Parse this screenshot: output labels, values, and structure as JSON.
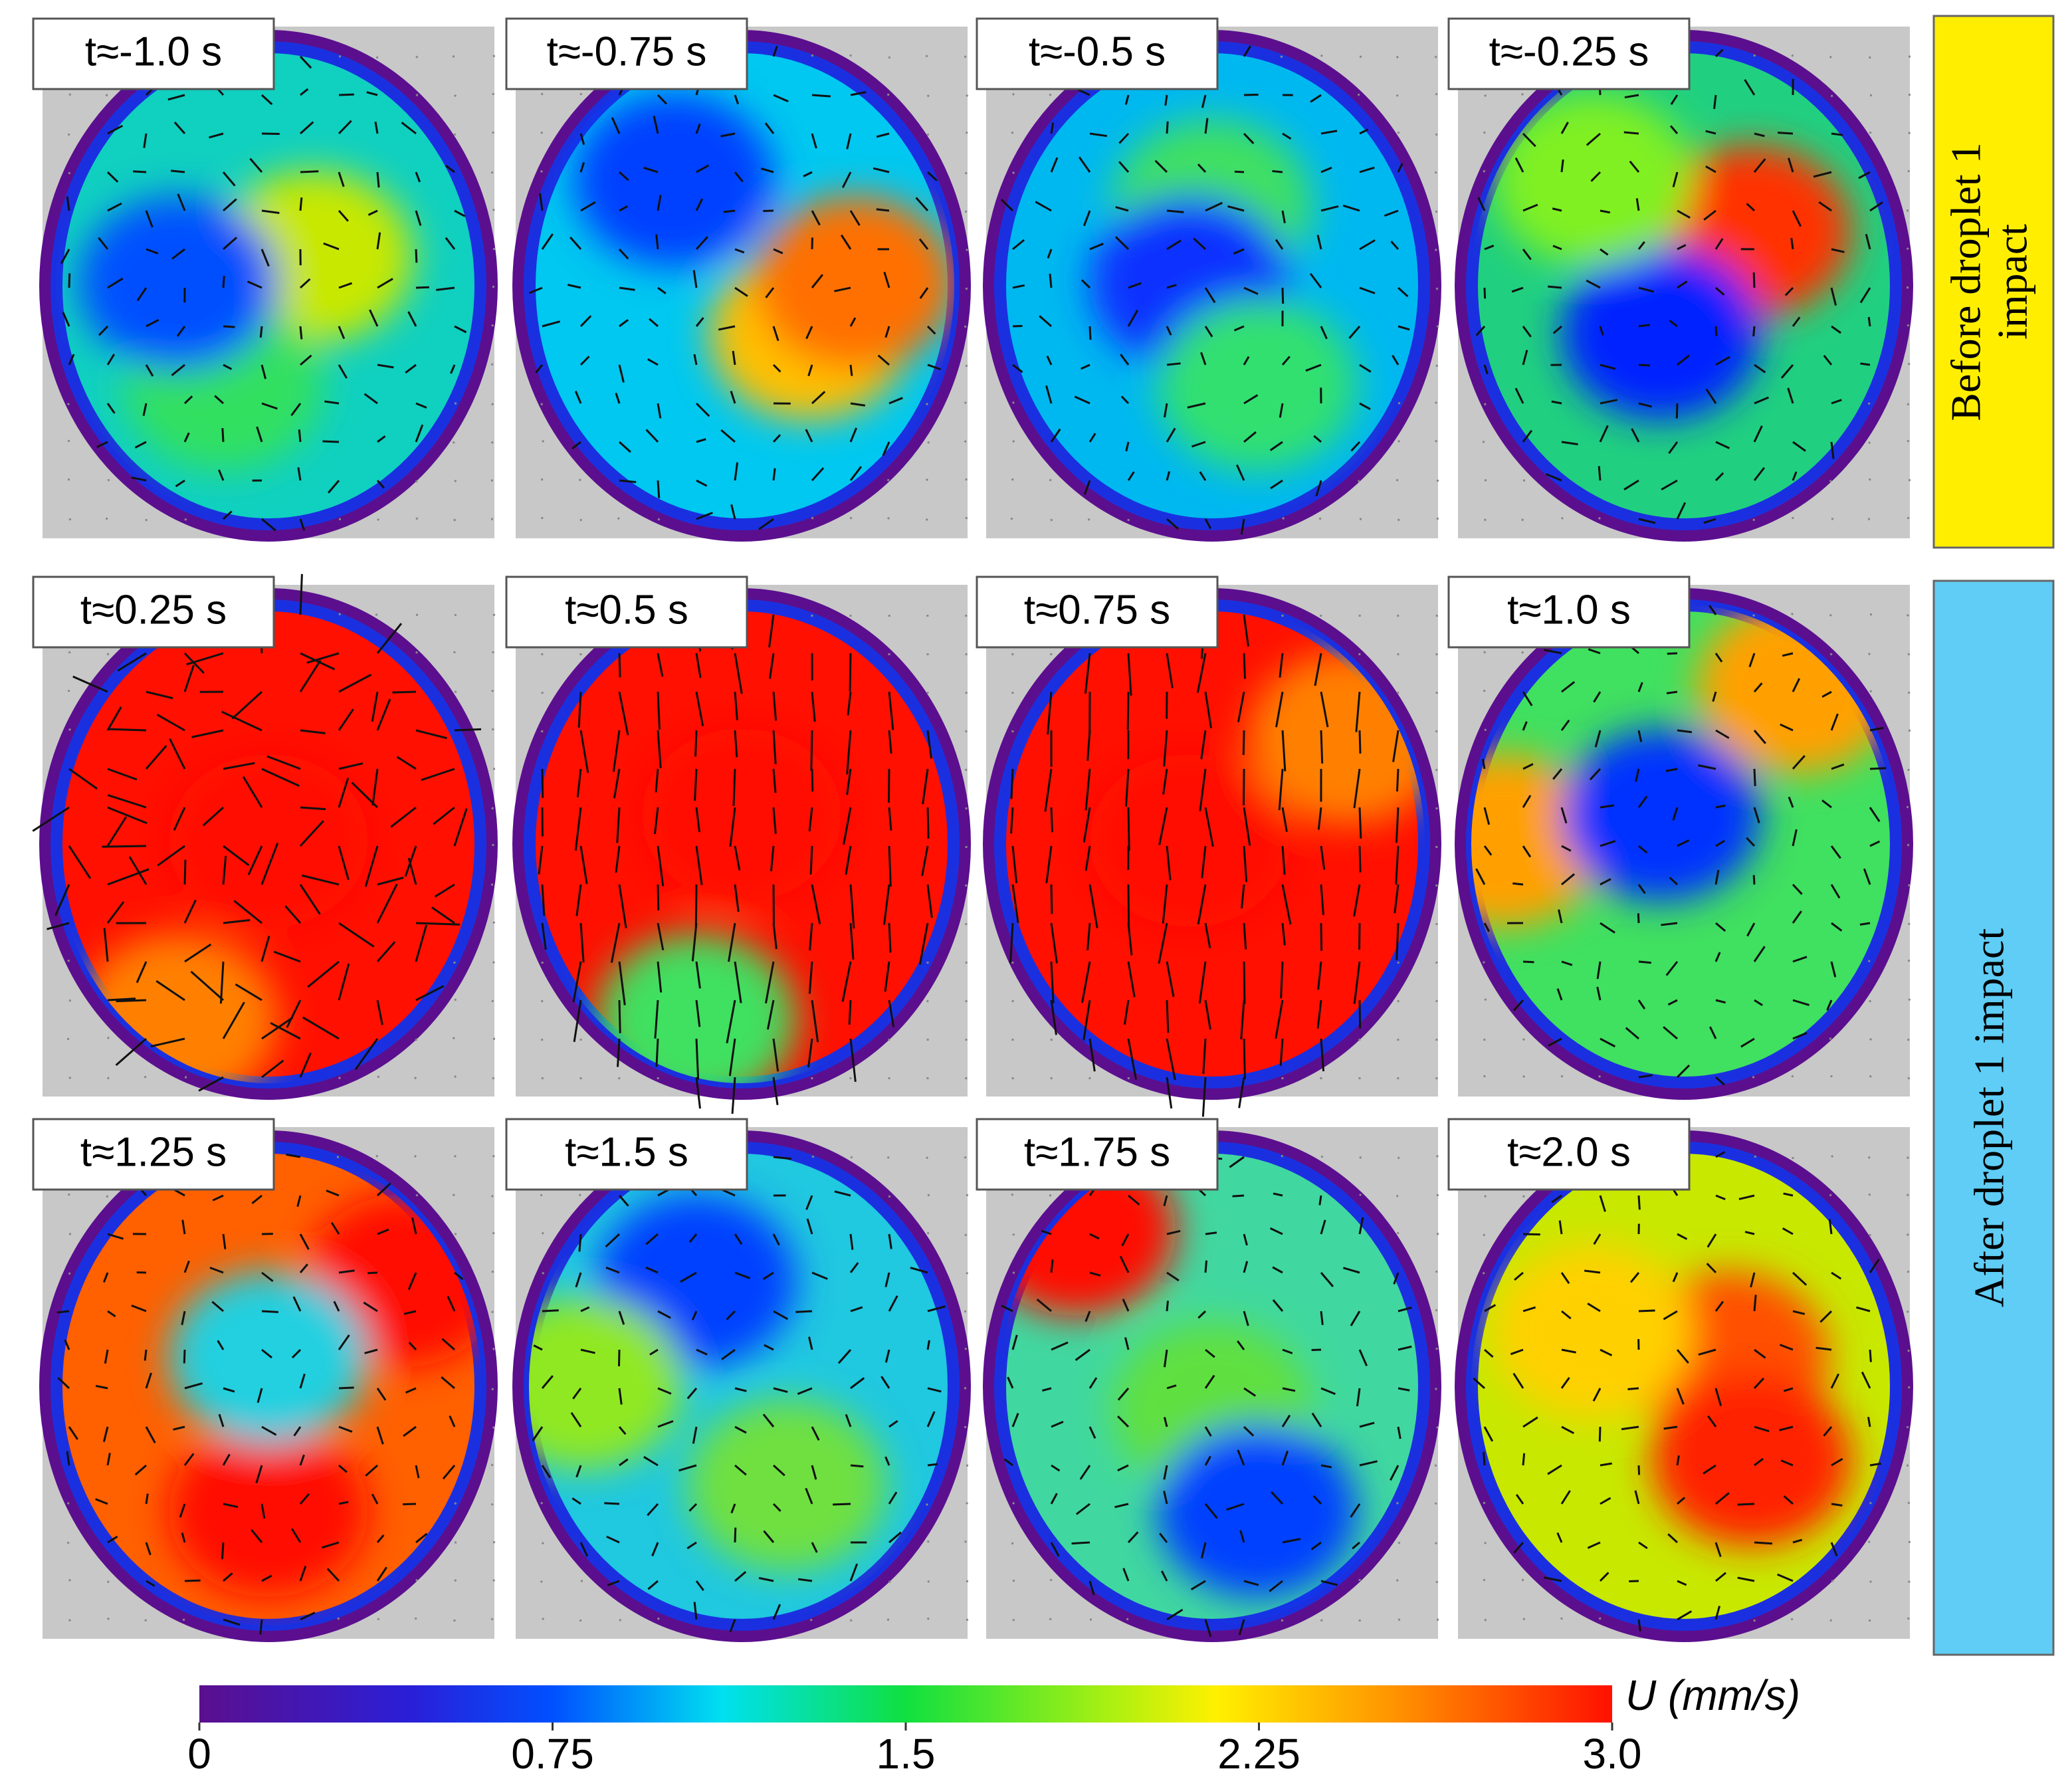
{
  "panels": [
    {
      "label": "t≈-1.0 s"
    },
    {
      "label": "t≈-0.75 s"
    },
    {
      "label": "t≈-0.5 s"
    },
    {
      "label": "t≈-0.25 s"
    },
    {
      "label": "t≈0.25 s"
    },
    {
      "label": "t≈0.5 s"
    },
    {
      "label": "t≈0.75 s"
    },
    {
      "label": "t≈1.0 s"
    },
    {
      "label": "t≈1.25 s"
    },
    {
      "label": "t≈1.5 s"
    },
    {
      "label": "t≈1.75 s"
    },
    {
      "label": "t≈2.0 s"
    }
  ],
  "groups": [
    {
      "lines": [
        "Before droplet 1",
        "impact"
      ]
    },
    {
      "lines": [
        "After droplet 1 impact"
      ]
    }
  ],
  "colorbar": {
    "label": "U (mm/s)",
    "lim": [
      0,
      3
    ],
    "ticks": [
      0,
      0.75,
      1.5,
      2.25,
      {
        "value": 3,
        "label": "3.0"
      }
    ]
  }
}
